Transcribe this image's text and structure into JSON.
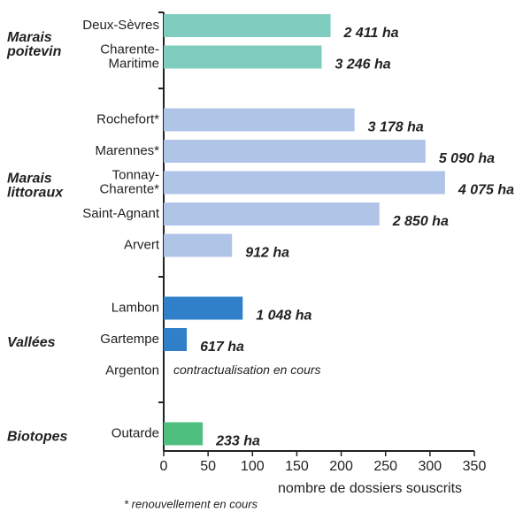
{
  "chart_data": {
    "type": "bar",
    "orientation": "horizontal",
    "groups": [
      {
        "name": "Marais\npoitevin",
        "color": "#7fcdbf",
        "categories": [
          "Deux-Sèvres",
          "Charente-\nMaritime"
        ],
        "values": [
          188,
          178
        ],
        "bar_labels": [
          "2 411 ha",
          "3 246 ha"
        ]
      },
      {
        "name": "Marais\nlittoraux",
        "color": "#b0c4e8",
        "categories": [
          "Rochefort*",
          "Marennes*",
          "Tonnay-\nCharente*",
          "Saint-Agnant",
          "Arvert"
        ],
        "values": [
          215,
          295,
          317,
          243,
          77
        ],
        "bar_labels": [
          "3 178 ha",
          "5 090 ha",
          "4 075 ha",
          "2 850 ha",
          "912 ha"
        ]
      },
      {
        "name": "Vallées",
        "color": "#2f80c9",
        "categories": [
          "Lambon",
          "Gartempe",
          "Argenton"
        ],
        "values": [
          89,
          26,
          null
        ],
        "bar_labels": [
          "1 048 ha",
          "617 ha",
          "contractualisation en cours"
        ]
      },
      {
        "name": "Biotopes",
        "color": "#4fbf7f",
        "categories": [
          "Outarde"
        ],
        "values": [
          44
        ],
        "bar_labels": [
          "233 ha"
        ]
      }
    ],
    "xlim": [
      0,
      350
    ],
    "xticks": [
      0,
      50,
      100,
      150,
      200,
      250,
      300,
      350
    ],
    "xlabel": "nombre de dossiers souscrits",
    "footnote": "* renouvellement en cours"
  }
}
